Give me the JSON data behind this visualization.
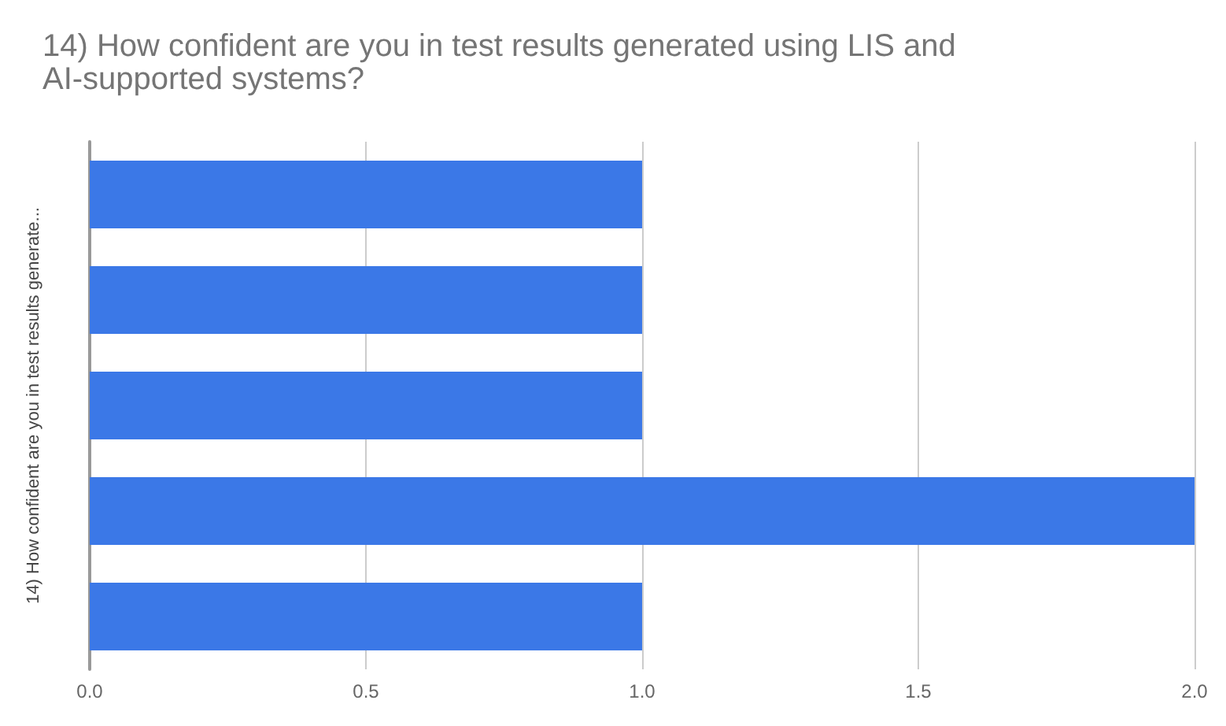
{
  "chart_data": {
    "type": "bar",
    "orientation": "horizontal",
    "title": "14) How confident are you in test results generated using LIS and AI-supported systems?",
    "ylabel": "14) How confident are you in test results generate...",
    "categories": [
      null,
      null,
      null,
      null,
      null
    ],
    "values": [
      1,
      1,
      1,
      2,
      1
    ],
    "color": "#3b78e7",
    "xlim": [
      0,
      2
    ],
    "xticks": [
      {
        "value": 0,
        "label": "0.0"
      },
      {
        "value": 0.5,
        "label": "0.5"
      },
      {
        "value": 1,
        "label": "1.0"
      },
      {
        "value": 1.5,
        "label": "1.5"
      },
      {
        "value": 2,
        "label": "2.0"
      }
    ],
    "grid": "x"
  }
}
